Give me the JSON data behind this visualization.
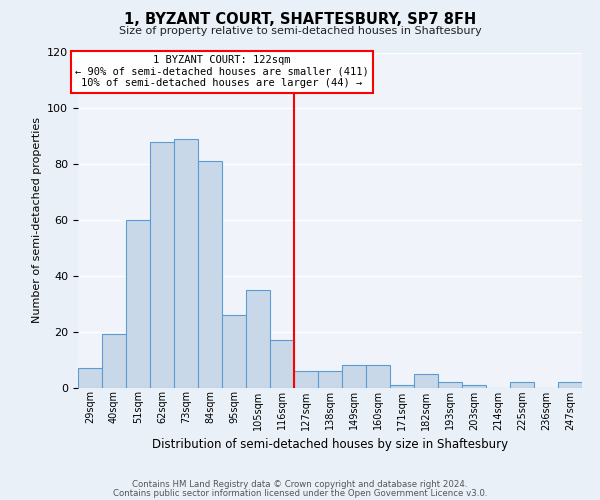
{
  "title": "1, BYZANT COURT, SHAFTESBURY, SP7 8FH",
  "subtitle": "Size of property relative to semi-detached houses in Shaftesbury",
  "xlabel": "Distribution of semi-detached houses by size in Shaftesbury",
  "ylabel": "Number of semi-detached properties",
  "bar_labels": [
    "29sqm",
    "40sqm",
    "51sqm",
    "62sqm",
    "73sqm",
    "84sqm",
    "95sqm",
    "105sqm",
    "116sqm",
    "127sqm",
    "138sqm",
    "149sqm",
    "160sqm",
    "171sqm",
    "182sqm",
    "193sqm",
    "203sqm",
    "214sqm",
    "225sqm",
    "236sqm",
    "247sqm"
  ],
  "bar_heights": [
    7,
    19,
    60,
    88,
    89,
    81,
    26,
    35,
    17,
    6,
    6,
    8,
    8,
    1,
    5,
    2,
    1,
    0,
    2,
    0,
    2
  ],
  "bar_color": "#c8d8e8",
  "bar_edge_color": "#5b9bd5",
  "vline_color": "red",
  "annotation_title": "1 BYZANT COURT: 122sqm",
  "annotation_line1": "← 90% of semi-detached houses are smaller (411)",
  "annotation_line2": "10% of semi-detached houses are larger (44) →",
  "annotation_box_edge": "red",
  "ylim": [
    0,
    120
  ],
  "yticks": [
    0,
    20,
    40,
    60,
    80,
    100,
    120
  ],
  "footer1": "Contains HM Land Registry data © Crown copyright and database right 2024.",
  "footer2": "Contains public sector information licensed under the Open Government Licence v3.0.",
  "bg_color": "#eaf0f8",
  "plot_bg_color": "#f0f4fa"
}
